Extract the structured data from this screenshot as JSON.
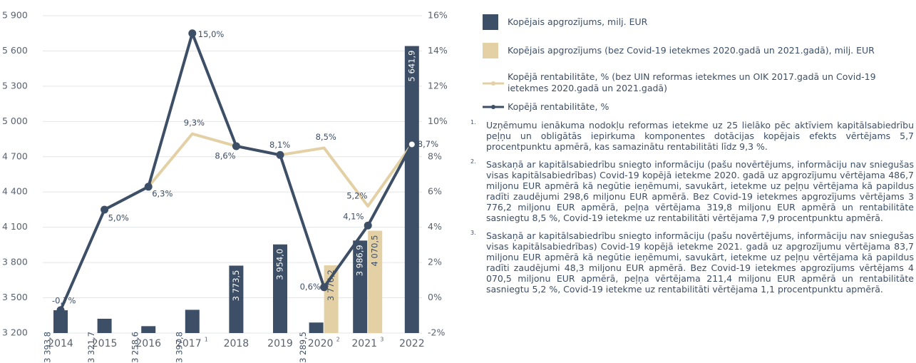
{
  "chart_data": {
    "type": "bar-line",
    "categories": [
      "2014",
      "2015",
      "2016",
      "2017",
      "2018",
      "2019",
      "2020",
      "2021",
      "2022"
    ],
    "category_notes": [
      null,
      null,
      null,
      "1",
      null,
      null,
      "2",
      "3",
      null
    ],
    "ylim": [
      3200,
      5900
    ],
    "yticks": [
      {
        "value": 3200,
        "label": "3 200"
      },
      {
        "value": 3500,
        "label": "3 500"
      },
      {
        "value": 3800,
        "label": "3 800"
      },
      {
        "value": 4100,
        "label": "4 100"
      },
      {
        "value": 4400,
        "label": "4 400"
      },
      {
        "value": 4700,
        "label": "4 700"
      },
      {
        "value": 5000,
        "label": "5 000"
      },
      {
        "value": 5300,
        "label": "5 300"
      },
      {
        "value": 5600,
        "label": "5 600"
      },
      {
        "value": 5900,
        "label": "5 900"
      }
    ],
    "y2lim": [
      -2,
      16
    ],
    "y2ticks": [
      {
        "value": -2,
        "label": "-2%"
      },
      {
        "value": 0,
        "label": "0%"
      },
      {
        "value": 2,
        "label": "2%"
      },
      {
        "value": 4,
        "label": "4%"
      },
      {
        "value": 6,
        "label": "6%"
      },
      {
        "value": 8,
        "label": "8%"
      },
      {
        "value": 10,
        "label": "10%"
      },
      {
        "value": 12,
        "label": "12%"
      },
      {
        "value": 14,
        "label": "14%"
      },
      {
        "value": 16,
        "label": "16%"
      }
    ],
    "grid": true,
    "series": [
      {
        "name": "Kopējais apgrozījums, milj. EUR",
        "type": "bar",
        "color": "#3d4f66",
        "values": [
          3393.8,
          3321.7,
          3258.6,
          3397.8,
          3773.5,
          3954.0,
          3289.5,
          3986.9,
          5641.9
        ],
        "value_labels": [
          "3 393,8",
          "3 321,7",
          "3 258,6",
          "3 397,8",
          "3 773,5",
          "3 954,0",
          "3 289,5",
          "3 986,9",
          "5 641,9"
        ]
      },
      {
        "name": "Kopējais apgrozījums (bez Covid-19 ietekmes 2020.gadā un 2021.gadā), milj. EUR",
        "type": "bar",
        "color": "#e3d0a5",
        "values": [
          null,
          null,
          null,
          null,
          null,
          null,
          3776.2,
          4070.5,
          null
        ],
        "value_labels": [
          null,
          null,
          null,
          null,
          null,
          null,
          "3 776,2",
          "4 070,5",
          null
        ]
      },
      {
        "name": "Kopējā rentabilitāte, % (bez UIN reformas ietekmes un OIK 2017.gadā un Covid-19 ietekmes 2020.gadā un 2021.gadā)",
        "type": "line",
        "axis": "y2",
        "color": "#e3d0a5",
        "values": [
          null,
          null,
          6.3,
          9.3,
          8.6,
          8.1,
          8.5,
          5.2,
          8.7
        ],
        "value_labels": [
          null,
          null,
          null,
          "9,3%",
          null,
          null,
          "8,5%",
          "5,2%",
          null
        ]
      },
      {
        "name": "Kopējā rentabilitāte, %",
        "type": "line",
        "axis": "y2",
        "color": "#3d4f66",
        "values": [
          -0.7,
          5.0,
          6.3,
          15.0,
          8.6,
          8.1,
          0.6,
          4.1,
          8.7
        ],
        "value_labels": [
          "-0,7%",
          "5,0%",
          "6,3%",
          "15,0%",
          "8,6%",
          "8,1%",
          "0,6%",
          "4,1%",
          "8,7%"
        ]
      }
    ]
  },
  "footnotes": [
    {
      "marker": "1.",
      "text": "Uzņēmumu ienākuma nodokļu reformas ietekme uz 25 lielāko pēc aktīviem kapitālsabiedrību peļņu un obligātās iepirkuma komponentes dotācijas kopējais efekts vērtējams 5,7 procentpunktu apmērā, kas samazinātu rentabilitāti līdz 9,3 %."
    },
    {
      "marker": "2.",
      "text": "Saskaņā ar kapitālsabiedrību sniegto informāciju (pašu novērtējums, informāciju nav sniegušas visas kapitālsabiedrības) Covid-19 kopējā ietekme 2020. gadā uz apgrozījumu vērtējama 486,7 miljonu EUR apmērā kā negūtie ieņēmumi, savukārt, ietekme uz peļņu vērtējama kā papildus radīti zaudējumi 298,6 miljonu EUR apmērā. Bez Covid-19 ietekmes apgrozījums vērtējams 3 776,2 miljonu EUR apmērā, peļņa vērtējama 319,8 miljonu EUR apmērā un rentabilitāte sasniegtu 8,5 %, Covid-19 ietekme uz rentabilitāti vērtējama 7,9 procentpunktu apmērā."
    },
    {
      "marker": "3.",
      "text": "Saskaņā ar kapitālsabiedrību sniegto informāciju (pašu novērtējums, informāciju nav sniegušas visas kapitālsabiedrības) Covid-19 kopējā ietekme 2021. gadā uz apgrozījumu vērtējama 83,7 miljonu EUR apmērā kā negūtie ieņēmumi, savukārt, ietekme uz peļņu vērtējama kā papildus radīti zaudējumi 48,3 miljonu EUR apmērā. Bez Covid-19 ietekmes apgrozījums vērtējams 4 070,5 miljonu EUR apmērā, peļņa vērtējama 211,4 miljonu EUR apmērā un rentabilitāte sasniegtu 5,2 %, Covid-19 ietekme uz rentabilitāti vērtējama 1,1 procentpunktu apmērā."
    }
  ]
}
